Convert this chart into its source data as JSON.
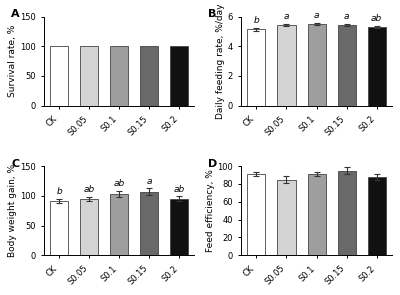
{
  "categories": [
    "CK",
    "S0.05",
    "S0.1",
    "S0.15",
    "S0.2"
  ],
  "bar_colors": [
    "#ffffff",
    "#d4d4d4",
    "#9e9e9e",
    "#696969",
    "#111111"
  ],
  "bar_edge_color": "#444444",
  "A_values": [
    100,
    100,
    100,
    100,
    100
  ],
  "A_errors": [
    0,
    0,
    0,
    0,
    0
  ],
  "A_ylabel": "Survival rate, %",
  "A_ylim": [
    0,
    150
  ],
  "A_yticks": [
    0,
    50,
    100,
    150
  ],
  "A_labels": [
    "",
    "",
    "",
    "",
    ""
  ],
  "A_title": "A",
  "B_values": [
    5.15,
    5.42,
    5.5,
    5.42,
    5.28
  ],
  "B_errors": [
    0.09,
    0.08,
    0.06,
    0.07,
    0.08
  ],
  "B_ylabel": "Daily feeding rate, %/day",
  "B_ylim": [
    0,
    6
  ],
  "B_yticks": [
    0,
    2,
    4,
    6
  ],
  "B_labels": [
    "b",
    "a",
    "a",
    "a",
    "ab"
  ],
  "B_title": "B",
  "C_values": [
    92,
    95,
    103,
    107,
    95
  ],
  "C_errors": [
    3.5,
    3.5,
    5.0,
    5.5,
    4.0
  ],
  "C_ylabel": "Body weight gain, %",
  "C_ylim": [
    0,
    150
  ],
  "C_yticks": [
    0,
    50,
    100,
    150
  ],
  "C_labels": [
    "b",
    "ab",
    "ab",
    "a",
    "ab"
  ],
  "C_title": "C",
  "D_values": [
    91,
    85,
    91,
    95,
    88
  ],
  "D_errors": [
    2.5,
    3.5,
    2.5,
    4.0,
    3.0
  ],
  "D_ylabel": "Feed efficiency, %",
  "D_ylim": [
    0,
    100
  ],
  "D_yticks": [
    0,
    20,
    40,
    60,
    80,
    100
  ],
  "D_labels": [
    "",
    "",
    "",
    "",
    ""
  ],
  "D_title": "D",
  "axis_label_fontsize": 6.5,
  "tick_fontsize": 6.0,
  "title_fontsize": 8,
  "sig_fontsize": 6.5
}
